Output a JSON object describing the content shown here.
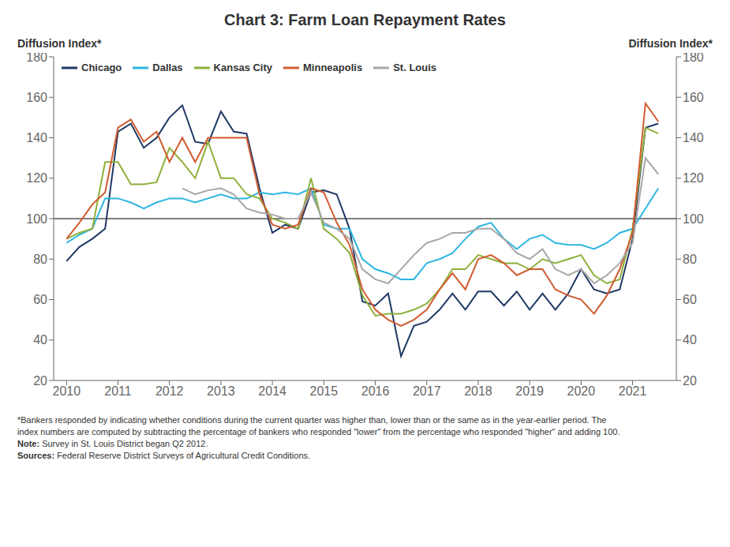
{
  "chart_data": {
    "type": "line",
    "title": "Chart 3: Farm Loan Repayment Rates",
    "ylabel": "Diffusion Index*",
    "y2label": "Diffusion Index*",
    "x": [
      2010,
      2010.25,
      2010.5,
      2010.75,
      2011,
      2011.25,
      2011.5,
      2011.75,
      2012,
      2012.25,
      2012.5,
      2012.75,
      2013,
      2013.25,
      2013.5,
      2013.75,
      2014,
      2014.25,
      2014.5,
      2014.75,
      2015,
      2015.25,
      2015.5,
      2015.75,
      2016,
      2016.25,
      2016.5,
      2016.75,
      2017,
      2017.25,
      2017.5,
      2017.75,
      2018,
      2018.25,
      2018.5,
      2018.75,
      2019,
      2019.25,
      2019.5,
      2019.75,
      2020,
      2020.25,
      2020.5,
      2020.75,
      2021,
      2021.25,
      2021.5
    ],
    "xlim": [
      2009.75,
      2021.85
    ],
    "xticks": [
      2010,
      2011,
      2012,
      2013,
      2014,
      2015,
      2016,
      2017,
      2018,
      2019,
      2020,
      2021
    ],
    "ylim": [
      20,
      180
    ],
    "yticks": [
      20,
      40,
      60,
      80,
      100,
      120,
      140,
      160,
      180
    ],
    "y2lim": [
      20,
      180
    ],
    "y2ticks": [
      20,
      40,
      60,
      80,
      100,
      120,
      140,
      160,
      180
    ],
    "reference_lines": [
      100
    ],
    "grid": false,
    "legend": "upper left",
    "series": [
      {
        "name": "Chicago",
        "color": "#1f3864",
        "values": [
          79,
          86,
          90,
          95,
          143,
          147,
          135,
          140,
          150,
          156,
          138,
          137,
          153,
          143,
          142,
          115,
          93,
          97,
          95,
          113,
          114,
          112,
          95,
          59,
          57,
          63,
          32,
          47,
          49,
          55,
          63,
          55,
          64,
          64,
          57,
          64,
          55,
          63,
          55,
          63,
          75,
          65,
          63,
          65,
          90,
          145,
          147
        ]
      },
      {
        "name": "Dallas",
        "color": "#2eb6e1",
        "values": [
          88,
          92,
          95,
          110,
          110,
          108,
          105,
          108,
          110,
          110,
          108,
          110,
          112,
          110,
          110,
          113,
          112,
          113,
          112,
          115,
          97,
          95,
          95,
          80,
          75,
          73,
          70,
          70,
          78,
          80,
          83,
          90,
          96,
          98,
          90,
          85,
          90,
          92,
          88,
          87,
          87,
          85,
          88,
          93,
          95,
          105,
          115
        ]
      },
      {
        "name": "Kansas City",
        "color": "#8db03a",
        "values": [
          90,
          93,
          95,
          128,
          128,
          117,
          117,
          118,
          135,
          128,
          120,
          138,
          120,
          120,
          112,
          110,
          100,
          98,
          95,
          120,
          95,
          90,
          83,
          62,
          52,
          53,
          53,
          55,
          58,
          65,
          75,
          75,
          82,
          80,
          78,
          78,
          75,
          80,
          78,
          80,
          82,
          72,
          68,
          70,
          95,
          145,
          142
        ]
      },
      {
        "name": "Minneapolis",
        "color": "#d05c30",
        "values": [
          90,
          98,
          107,
          113,
          145,
          149,
          138,
          143,
          128,
          140,
          128,
          140,
          140,
          140,
          140,
          112,
          97,
          95,
          97,
          115,
          113,
          98,
          87,
          65,
          55,
          50,
          47,
          50,
          55,
          65,
          73,
          65,
          80,
          82,
          78,
          72,
          75,
          75,
          65,
          62,
          60,
          53,
          62,
          75,
          93,
          157,
          148
        ]
      },
      {
        "name": "St. Louis",
        "color": "#a6a6a6",
        "values": [
          null,
          null,
          null,
          null,
          null,
          null,
          null,
          null,
          null,
          115,
          112,
          114,
          115,
          112,
          105,
          103,
          102,
          100,
          100,
          113,
          98,
          95,
          90,
          75,
          70,
          68,
          75,
          82,
          88,
          90,
          93,
          93,
          95,
          95,
          90,
          83,
          80,
          85,
          75,
          72,
          75,
          68,
          72,
          78,
          88,
          130,
          122
        ]
      }
    ],
    "annotations": [
      "*Bankers responded by indicating whether conditions during the current quarter was higher than, lower than or the same as in the year-earlier period. The",
      "index numbers are computed by subtracting the percentage of bankers who responded \"lower\" from the percentage who responded \"higher\" and adding 100.",
      "Note: Survey in St. Louis District began Q2 2012.",
      "Sources: Federal Reserve District Surveys of Agricultural Credit Conditions."
    ]
  }
}
